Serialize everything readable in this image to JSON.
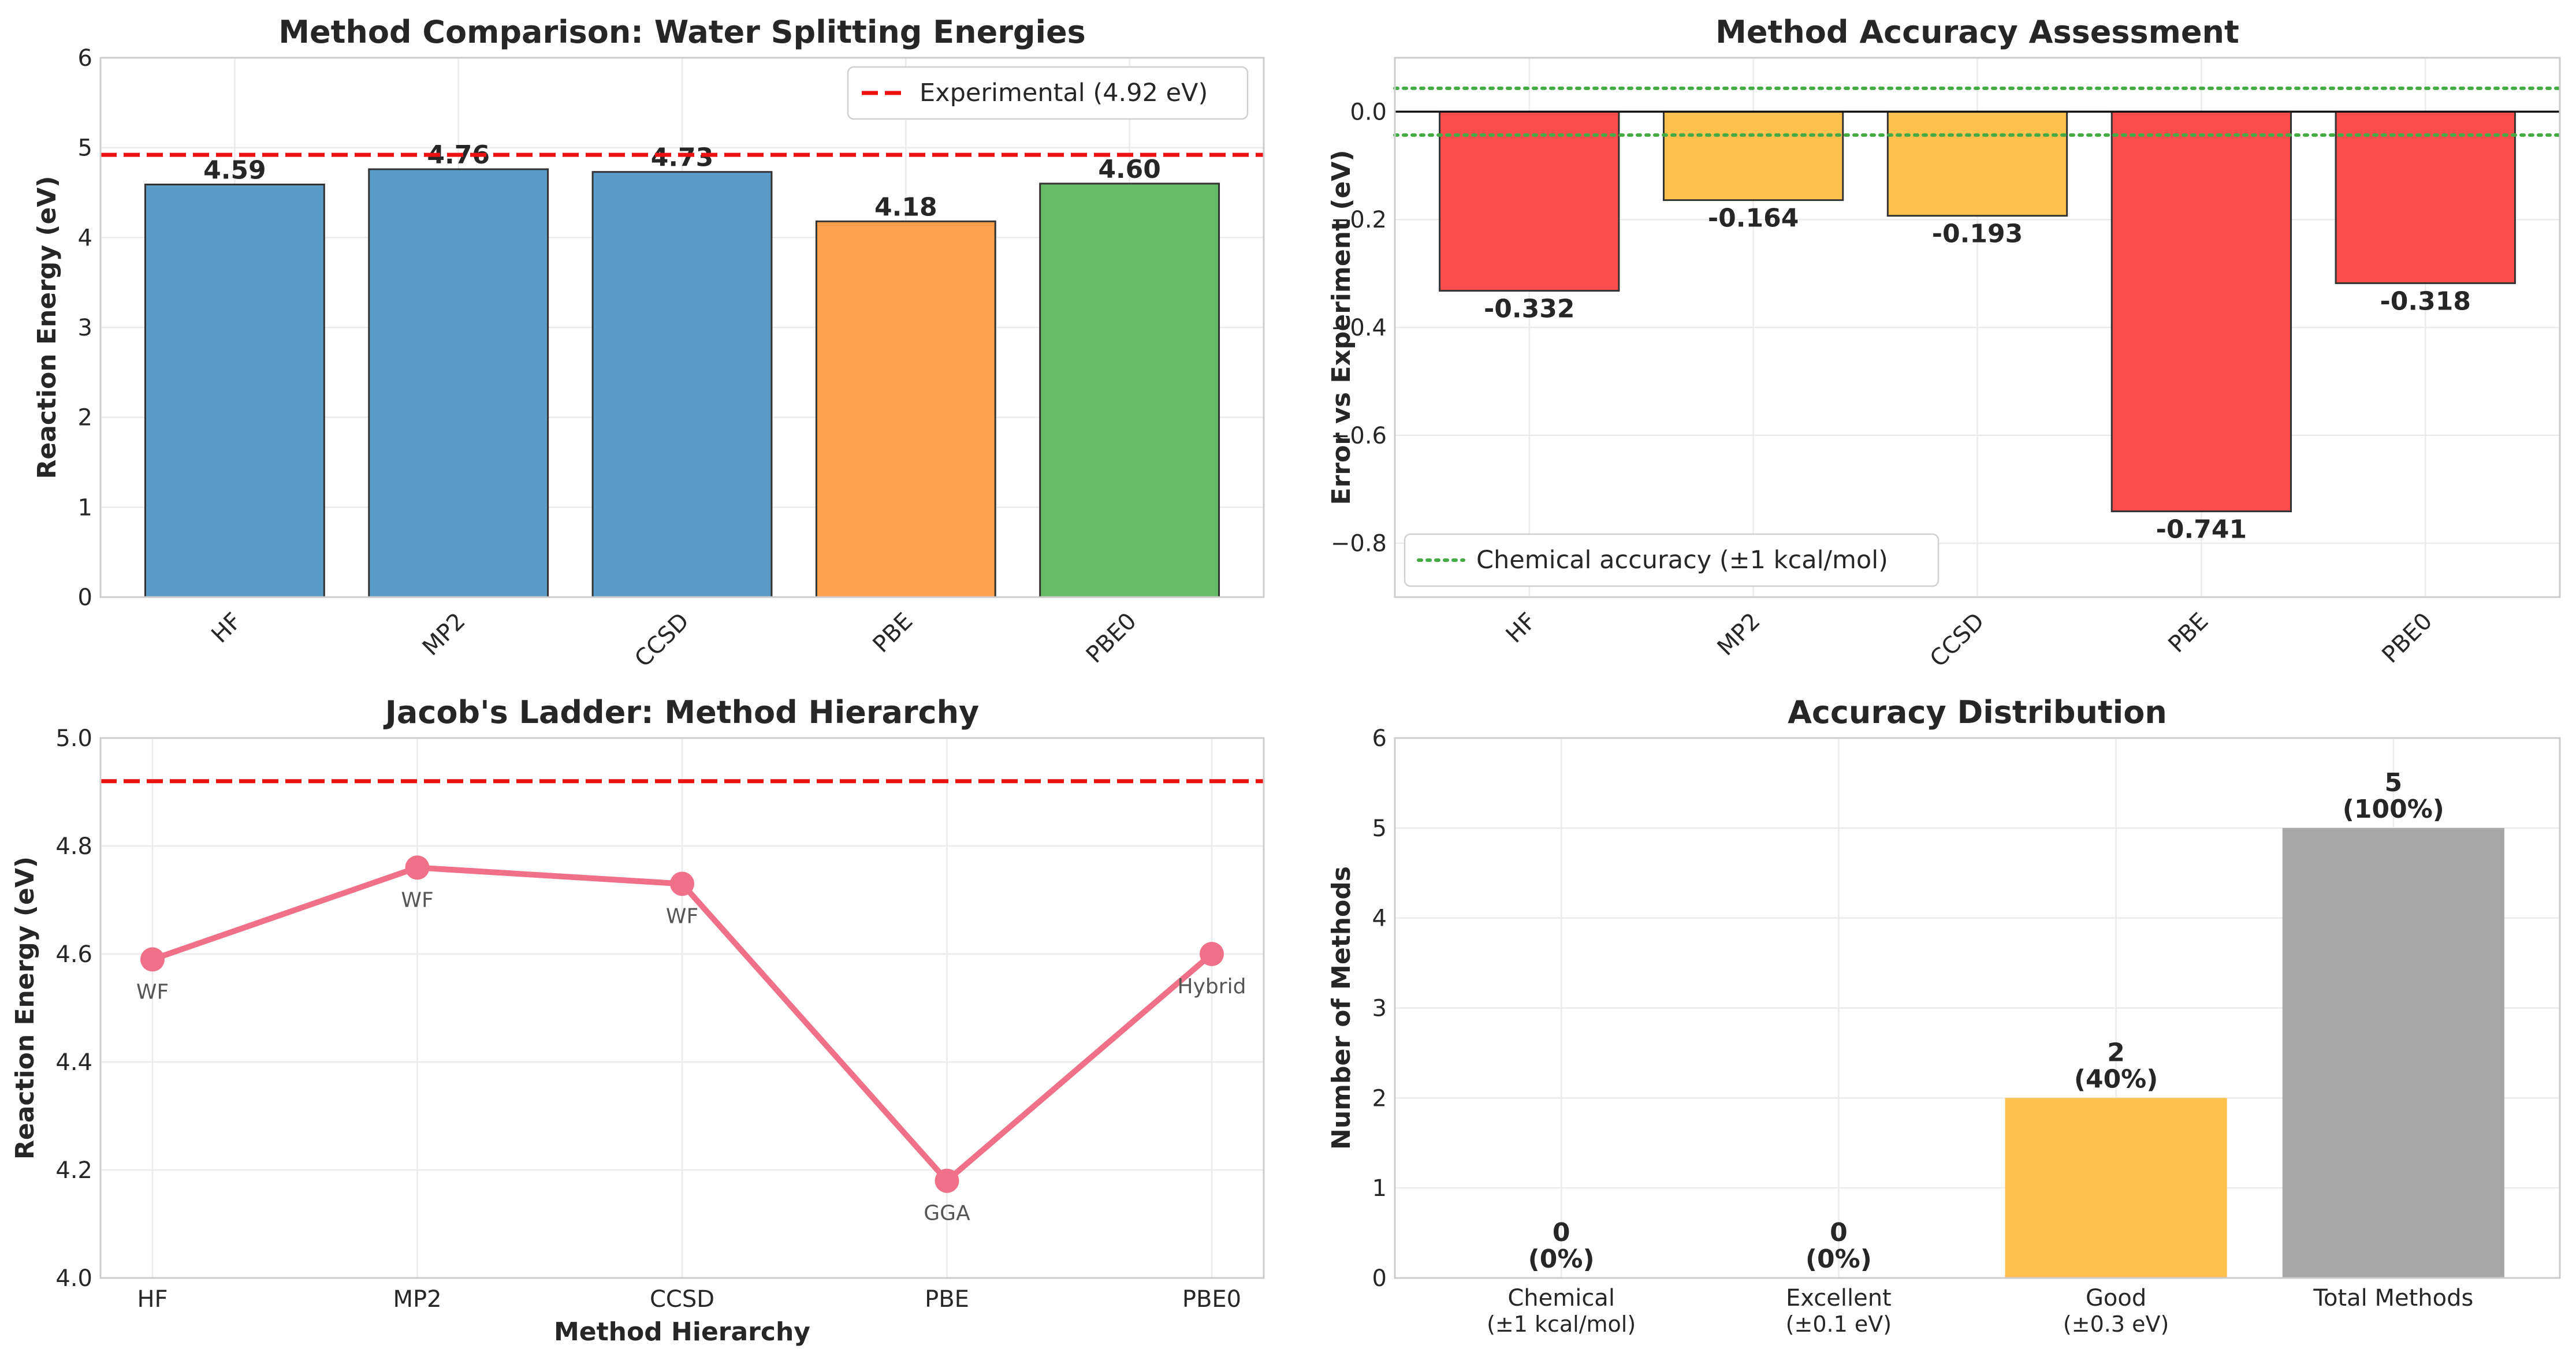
{
  "chart_data": [
    {
      "type": "bar",
      "title": "Method Comparison: Water Splitting Energies",
      "xlabel": "",
      "ylabel": "Reaction Energy (eV)",
      "categories": [
        "HF",
        "MP2",
        "CCSD",
        "PBE",
        "PBE0"
      ],
      "values": [
        4.59,
        4.76,
        4.73,
        4.18,
        4.6
      ],
      "value_labels": [
        "4.59",
        "4.76",
        "4.73",
        "4.18",
        "4.60"
      ],
      "colors": [
        "#5b9bc8",
        "#5b9bc8",
        "#5b9bc8",
        "#ffa04d",
        "#66bb66"
      ],
      "ylim": [
        0,
        6
      ],
      "yticks": [
        "0",
        "1",
        "2",
        "3",
        "4",
        "5",
        "6"
      ],
      "reference_line": {
        "value": 4.92,
        "color": "#ee1111",
        "style": "dashed",
        "label": "Experimental (4.92 eV)"
      },
      "legend_position": "top-right",
      "grid": true
    },
    {
      "type": "bar",
      "title": "Method Accuracy Assessment",
      "xlabel": "",
      "ylabel": "Error vs Experiment (eV)",
      "categories": [
        "HF",
        "MP2",
        "CCSD",
        "PBE",
        "PBE0"
      ],
      "values": [
        -0.332,
        -0.164,
        -0.193,
        -0.741,
        -0.318
      ],
      "value_labels": [
        "-0.332",
        "-0.164",
        "-0.193",
        "-0.741",
        "-0.318"
      ],
      "colors": [
        "#ff4d4d",
        "#ffc04d",
        "#ffc04d",
        "#ff4d4d",
        "#ff4d4d"
      ],
      "ylim": [
        -0.9,
        0.1
      ],
      "yticks": [
        "0.0",
        "−0.2",
        "−0.4",
        "−0.6",
        "−0.8"
      ],
      "reference_lines": [
        {
          "value": 0.0434,
          "color": "#44aa44",
          "style": "dotted"
        },
        {
          "value": -0.0434,
          "color": "#44aa44",
          "style": "dotted"
        }
      ],
      "zero_line": true,
      "legend": [
        "Chemical accuracy (±1 kcal/mol)"
      ],
      "legend_position": "bottom-left",
      "grid": true
    },
    {
      "type": "line",
      "title": "Jacob's Ladder: Method Hierarchy",
      "xlabel": "Method Hierarchy",
      "ylabel": "Reaction Energy (eV)",
      "categories": [
        "HF",
        "MP2",
        "CCSD",
        "PBE",
        "PBE0"
      ],
      "values": [
        4.59,
        4.76,
        4.73,
        4.18,
        4.6
      ],
      "point_annotations": [
        "WF",
        "WF",
        "WF",
        "GGA",
        "Hybrid"
      ],
      "color": "#f07088",
      "ylim": [
        4.0,
        5.0
      ],
      "yticks": [
        "4.0",
        "4.2",
        "4.4",
        "4.6",
        "4.8",
        "5.0"
      ],
      "reference_line": {
        "value": 4.92,
        "color": "#ee1111",
        "style": "dashed"
      },
      "grid": true
    },
    {
      "type": "bar",
      "title": "Accuracy Distribution",
      "xlabel": "",
      "ylabel": "Number of Methods",
      "categories": [
        [
          "Chemical",
          "(±1 kcal/mol)"
        ],
        [
          "Excellent",
          "(±0.1 eV)"
        ],
        [
          "Good",
          "(±0.3 eV)"
        ],
        [
          "Total Methods",
          ""
        ]
      ],
      "values": [
        0,
        0,
        2,
        5
      ],
      "value_labels": [
        [
          "0",
          "(0%)"
        ],
        [
          "0",
          "(0%)"
        ],
        [
          "2",
          "(40%)"
        ],
        [
          "5",
          "(100%)"
        ]
      ],
      "colors": [
        "#55bb55",
        "#5b9bc8",
        "#ffc04d",
        "#a6a6a6"
      ],
      "ylim": [
        0,
        6
      ],
      "yticks": [
        "0",
        "1",
        "2",
        "3",
        "4",
        "5",
        "6"
      ],
      "grid": true
    }
  ]
}
